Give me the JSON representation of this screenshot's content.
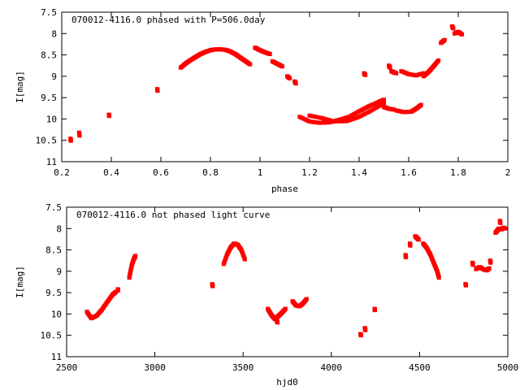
{
  "chart_data": [
    {
      "type": "scatter",
      "title": "070012-4116.0 phased with P=506.0day",
      "xlabel": "phase",
      "ylabel": "I[mag]",
      "xlim": [
        0.2,
        2.0
      ],
      "ylim": [
        7.5,
        11.0
      ],
      "y_inverted": true,
      "grid": false,
      "color": "#ff0000",
      "xticks": [
        "0.2",
        "0.4",
        "0.6",
        "0.8",
        "1",
        "1.2",
        "1.4",
        "1.6",
        "1.8",
        "2"
      ],
      "yticks": [
        "7.5",
        "8",
        "8.5",
        "9",
        "9.5",
        "10",
        "10.5",
        "11"
      ],
      "xtick_values": [
        0.2,
        0.4,
        0.6,
        0.8,
        1.0,
        1.2,
        1.4,
        1.6,
        1.8,
        2.0
      ],
      "ytick_values": [
        7.5,
        8.0,
        8.5,
        9.0,
        9.5,
        10.0,
        10.5,
        11.0
      ],
      "segments": [
        {
          "x": [
            0.235,
            0.237
          ],
          "y": [
            10.46,
            10.51
          ]
        },
        {
          "x": [
            0.27,
            0.272
          ],
          "y": [
            10.32,
            10.39
          ]
        },
        {
          "x": [
            0.39,
            0.392
          ],
          "y": [
            9.9,
            9.93
          ]
        },
        {
          "x": [
            0.585,
            0.587
          ],
          "y": [
            9.3,
            9.34
          ]
        },
        {
          "x": [
            0.68,
            0.7,
            0.72,
            0.74,
            0.76,
            0.78,
            0.8,
            0.82,
            0.84,
            0.86,
            0.88,
            0.9,
            0.92,
            0.94,
            0.96
          ],
          "y": [
            8.8,
            8.7,
            8.62,
            8.55,
            8.48,
            8.43,
            8.39,
            8.37,
            8.37,
            8.38,
            8.42,
            8.48,
            8.56,
            8.64,
            8.72
          ]
        },
        {
          "x": [
            0.98,
            1.0,
            1.02,
            1.04
          ],
          "y": [
            8.33,
            8.39,
            8.44,
            8.48
          ]
        },
        {
          "x": [
            1.05,
            1.07,
            1.09
          ],
          "y": [
            8.65,
            8.71,
            8.77
          ]
        },
        {
          "x": [
            1.11,
            1.12
          ],
          "y": [
            9.0,
            9.05
          ]
        },
        {
          "x": [
            1.14,
            1.145
          ],
          "y": [
            9.12,
            9.17
          ]
        },
        {
          "x": [
            1.16,
            1.2,
            1.24,
            1.28,
            1.32,
            1.36,
            1.4,
            1.44,
            1.48,
            1.5
          ],
          "y": [
            9.95,
            10.06,
            10.09,
            10.08,
            10.02,
            9.95,
            9.82,
            9.7,
            9.6,
            9.55
          ]
        },
        {
          "x": [
            1.2,
            1.25,
            1.3,
            1.35,
            1.4,
            1.45,
            1.5
          ],
          "y": [
            9.92,
            9.98,
            10.06,
            10.05,
            9.95,
            9.8,
            9.63
          ]
        },
        {
          "x": [
            1.42,
            1.425
          ],
          "y": [
            8.93,
            8.97
          ]
        },
        {
          "x": [
            1.5,
            1.52,
            1.54
          ],
          "y": [
            9.72,
            9.76,
            9.78
          ]
        },
        {
          "x": [
            1.55,
            1.58,
            1.61,
            1.63,
            1.65
          ],
          "y": [
            9.8,
            9.84,
            9.83,
            9.76,
            9.67
          ]
        },
        {
          "x": [
            1.52,
            1.525
          ],
          "y": [
            8.75,
            8.8
          ]
        },
        {
          "x": [
            1.53,
            1.54,
            1.55
          ],
          "y": [
            8.88,
            8.91,
            8.93
          ]
        },
        {
          "x": [
            1.57,
            1.6,
            1.63,
            1.66
          ],
          "y": [
            8.88,
            8.95,
            8.98,
            8.93
          ]
        },
        {
          "x": [
            1.66,
            1.68,
            1.7,
            1.72
          ],
          "y": [
            9.0,
            8.9,
            8.77,
            8.63
          ]
        },
        {
          "x": [
            1.73,
            1.745
          ],
          "y": [
            8.22,
            8.15
          ]
        },
        {
          "x": [
            1.775,
            1.78
          ],
          "y": [
            7.83,
            7.88
          ]
        },
        {
          "x": [
            1.785,
            1.8,
            1.815
          ],
          "y": [
            8.0,
            7.96,
            8.02
          ]
        }
      ]
    },
    {
      "type": "scatter",
      "title": "070012-4116.0 not phased light curve",
      "xlabel": "hjd0",
      "ylabel": "I[mag]",
      "xlim": [
        2500,
        5000
      ],
      "ylim": [
        7.5,
        11.0
      ],
      "y_inverted": true,
      "grid": false,
      "color": "#ff0000",
      "xticks": [
        "2500",
        "3000",
        "3500",
        "4000",
        "4500",
        "5000"
      ],
      "yticks": [
        "7.5",
        "8",
        "8.5",
        "9",
        "9.5",
        "10",
        "10.5",
        "11"
      ],
      "xtick_values": [
        2500,
        3000,
        3500,
        4000,
        4500,
        5000
      ],
      "ytick_values": [
        7.5,
        8.0,
        8.5,
        9.0,
        9.5,
        10.0,
        10.5,
        11.0
      ],
      "segments": [
        {
          "x": [
            2615,
            2640,
            2670,
            2700,
            2730,
            2760,
            2780
          ],
          "y": [
            9.95,
            10.1,
            10.04,
            9.9,
            9.72,
            9.55,
            9.48
          ]
        },
        {
          "x": [
            2790,
            2792
          ],
          "y": [
            9.42,
            9.45
          ]
        },
        {
          "x": [
            2855,
            2862,
            2870,
            2880,
            2890
          ],
          "y": [
            9.15,
            9.0,
            8.85,
            8.72,
            8.64
          ]
        },
        {
          "x": [
            3325,
            3328
          ],
          "y": [
            9.3,
            9.35
          ]
        },
        {
          "x": [
            3390,
            3410,
            3430,
            3450,
            3470,
            3490,
            3510
          ],
          "y": [
            8.83,
            8.6,
            8.44,
            8.35,
            8.38,
            8.5,
            8.72
          ]
        },
        {
          "x": [
            3640,
            3660,
            3680,
            3700,
            3720,
            3740
          ],
          "y": [
            9.88,
            10.02,
            10.12,
            10.05,
            9.97,
            9.88
          ]
        },
        {
          "x": [
            3690,
            3695
          ],
          "y": [
            10.15,
            10.2
          ]
        },
        {
          "x": [
            3780,
            3800,
            3820,
            3840,
            3860
          ],
          "y": [
            9.7,
            9.8,
            9.82,
            9.75,
            9.65
          ]
        },
        {
          "x": [
            4165,
            4168
          ],
          "y": [
            10.47,
            10.5
          ]
        },
        {
          "x": [
            4190,
            4193
          ],
          "y": [
            10.33,
            10.38
          ]
        },
        {
          "x": [
            4245,
            4247
          ],
          "y": [
            9.88,
            9.91
          ]
        },
        {
          "x": [
            4420,
            4423
          ],
          "y": [
            8.62,
            8.67
          ]
        },
        {
          "x": [
            4445,
            4448
          ],
          "y": [
            8.35,
            8.4
          ]
        },
        {
          "x": [
            4475,
            4485,
            4495
          ],
          "y": [
            8.18,
            8.22,
            8.26
          ]
        },
        {
          "x": [
            4520,
            4540,
            4560,
            4580,
            4600,
            4610
          ],
          "y": [
            8.35,
            8.45,
            8.6,
            8.8,
            9.0,
            9.15
          ]
        },
        {
          "x": [
            4760,
            4763
          ],
          "y": [
            9.3,
            9.33
          ]
        },
        {
          "x": [
            4800,
            4803
          ],
          "y": [
            8.8,
            8.85
          ]
        },
        {
          "x": [
            4820,
            4840,
            4860,
            4880,
            4895
          ],
          "y": [
            8.95,
            8.9,
            8.95,
            8.98,
            8.93
          ]
        },
        {
          "x": [
            4900,
            4903
          ],
          "y": [
            8.75,
            8.8
          ]
        },
        {
          "x": [
            4930,
            4940,
            4950
          ],
          "y": [
            8.1,
            8.05,
            8.0
          ]
        },
        {
          "x": [
            4955,
            4958
          ],
          "y": [
            7.82,
            7.87
          ]
        },
        {
          "x": [
            4965,
            4975,
            4985
          ],
          "y": [
            8.02,
            7.98,
            8.0
          ]
        }
      ]
    }
  ]
}
